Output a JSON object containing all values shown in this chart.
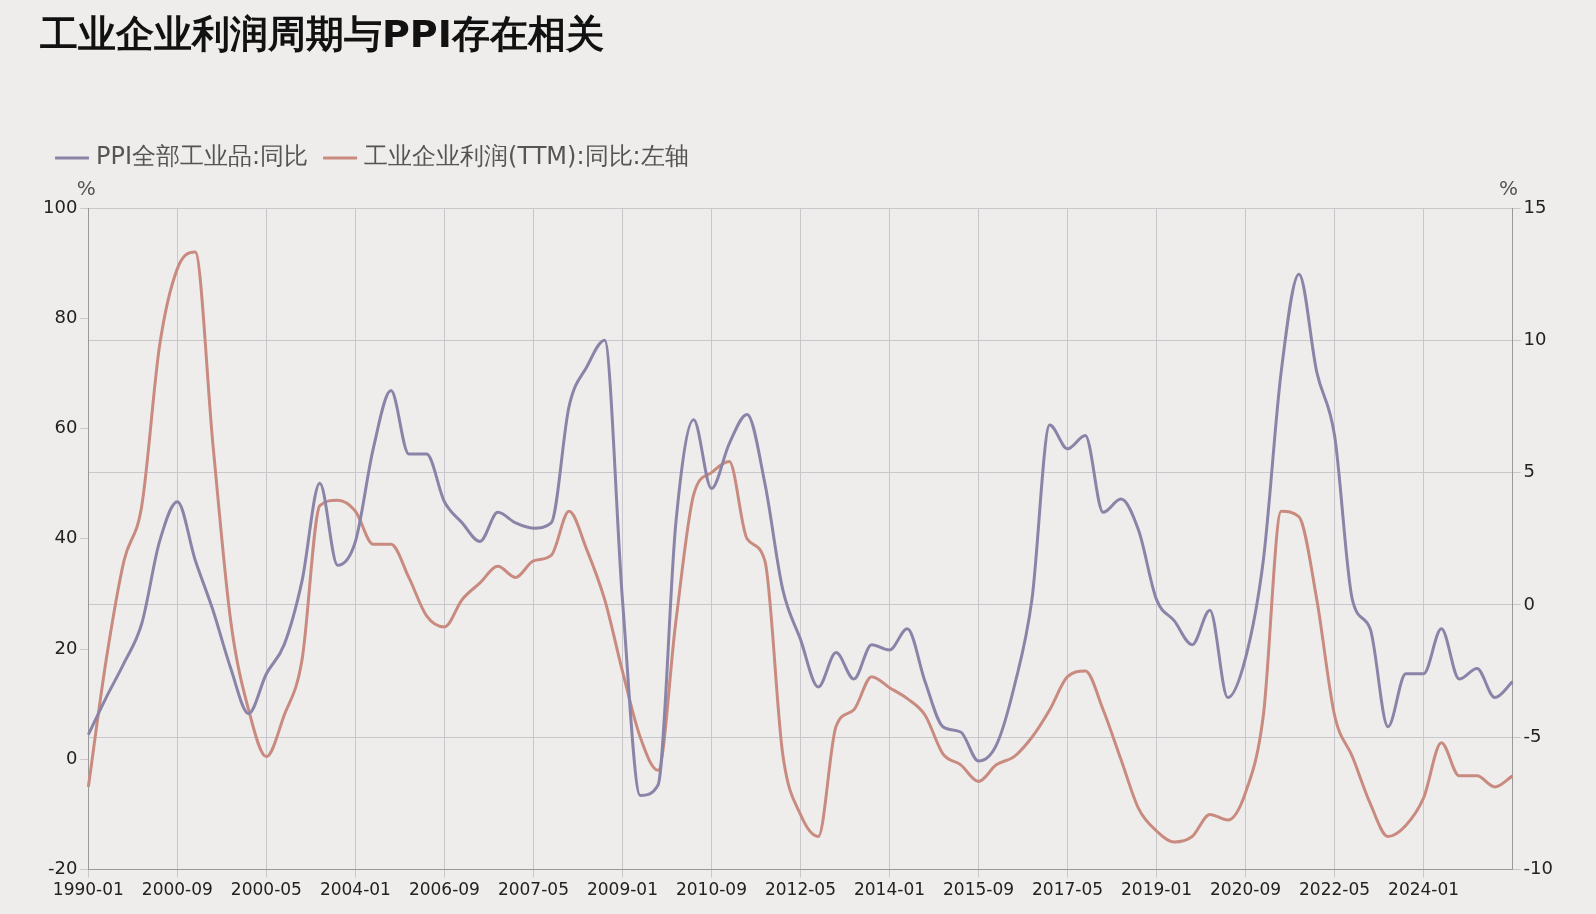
{
  "chart_data": {
    "type": "line",
    "title": "工业企业利润周期与PPI存在相关",
    "ylabel": "%",
    "y2label": "%",
    "categories": [
      "1990-01",
      null,
      null,
      null,
      null,
      "2000-09",
      null,
      null,
      null,
      null,
      "2000-05",
      null,
      null,
      null,
      null,
      "2004-01",
      null,
      null,
      null,
      null,
      "2006-09",
      null,
      null,
      null,
      null,
      "2007-05",
      null,
      null,
      null,
      null,
      "2009-01",
      null,
      null,
      null,
      null,
      "2010-09",
      null,
      null,
      null,
      null,
      "2012-05",
      null,
      null,
      null,
      null,
      "2014-01",
      null,
      null,
      null,
      null,
      "2015-09",
      null,
      null,
      null,
      null,
      "2017-05",
      null,
      null,
      null,
      null,
      "2019-01",
      null,
      null,
      null,
      null,
      "2020-09",
      null,
      null,
      null,
      null,
      "2022-05",
      null,
      null,
      null,
      null,
      "2024-01",
      null,
      null,
      null,
      null,
      null
    ],
    "series": [
      {
        "name": "PPI全部工业品:同比",
        "color": "#8a85a8",
        "axis": "y2",
        "values": [
          -4.9,
          -3.5,
          -2.2,
          -0.7,
          2.4,
          3.9,
          1.7,
          -0.2,
          -2.4,
          -4.1,
          -2.6,
          -1.5,
          0.9,
          4.6,
          1.5,
          2.4,
          5.9,
          8.1,
          5.7,
          5.7,
          3.9,
          3.1,
          2.4,
          3.5,
          3.1,
          2.9,
          3.1,
          7.5,
          9,
          10,
          0.2,
          -7.2,
          -6.8,
          3.1,
          7,
          4.4,
          6.1,
          7.2,
          4.6,
          0.6,
          -1.3,
          -3.1,
          -1.8,
          -2.8,
          -1.5,
          -1.7,
          -0.9,
          -2.9,
          -4.6,
          -4.8,
          -5.9,
          -5.3,
          -3.1,
          0.2,
          6.8,
          5.9,
          6.4,
          3.5,
          4,
          2.8,
          0.2,
          -0.6,
          -1.5,
          -0.2,
          -3.5,
          -2,
          1.7,
          8.8,
          12.5,
          8.8,
          6.4,
          0.2,
          -0.9,
          -4.6,
          -2.6,
          -2.6,
          -0.9,
          -2.8,
          -2.4,
          -3.5,
          -2.9
        ]
      },
      {
        "name": "工业企业利润(TTM):同比:左轴",
        "color": "#c98b80",
        "axis": "y",
        "values": [
          -5,
          18,
          36,
          46,
          75,
          89,
          92,
          57,
          25,
          9,
          0.5,
          8,
          18,
          46,
          47,
          45,
          39,
          39,
          33,
          26,
          24,
          29,
          32,
          35,
          33,
          36,
          37,
          45,
          38,
          29,
          16,
          4,
          -2,
          25,
          48,
          52,
          54,
          40,
          36,
          1,
          -10,
          -14,
          6,
          9,
          15,
          13,
          11,
          8,
          1,
          -1,
          -4,
          -1,
          0.5,
          4,
          9,
          15,
          16,
          9,
          0,
          -9,
          -13,
          -15,
          -14,
          -10,
          -11,
          -6,
          8,
          45,
          44,
          29,
          8,
          0.5,
          -8,
          -14,
          -12,
          -7,
          3,
          -3,
          -3,
          -5,
          -3
        ]
      }
    ],
    "ylim": [
      -20,
      100
    ],
    "yticks": [
      -20,
      0,
      20,
      40,
      60,
      80,
      100
    ],
    "y2lim": [
      -10,
      15
    ],
    "y2ticks": [
      -10,
      -5,
      0,
      5,
      10,
      15
    ],
    "grid": true,
    "legend": "top left",
    "line_style": "solid"
  }
}
